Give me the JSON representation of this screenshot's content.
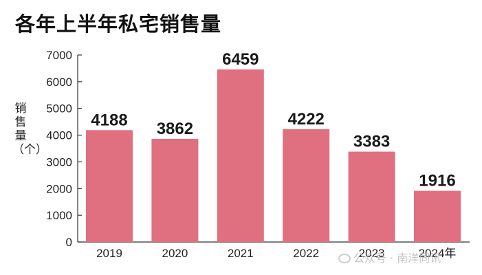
{
  "chart_data": {
    "type": "bar",
    "title": "各年上半年私宅销售量",
    "ylabel": "销售量（个）",
    "xlabel": "",
    "categories": [
      "2019",
      "2020",
      "2021",
      "2022",
      "2023",
      "2024年"
    ],
    "values": [
      4188,
      3862,
      6459,
      4222,
      3383,
      1916
    ],
    "ylim": [
      0,
      7000
    ],
    "yticks": [
      0,
      1000,
      2000,
      3000,
      4000,
      5000,
      6000,
      7000
    ],
    "grid": false,
    "bar_color": "#e07080",
    "data_labels": true
  },
  "watermark": {
    "text": "公众号 · 南洋同讯"
  }
}
